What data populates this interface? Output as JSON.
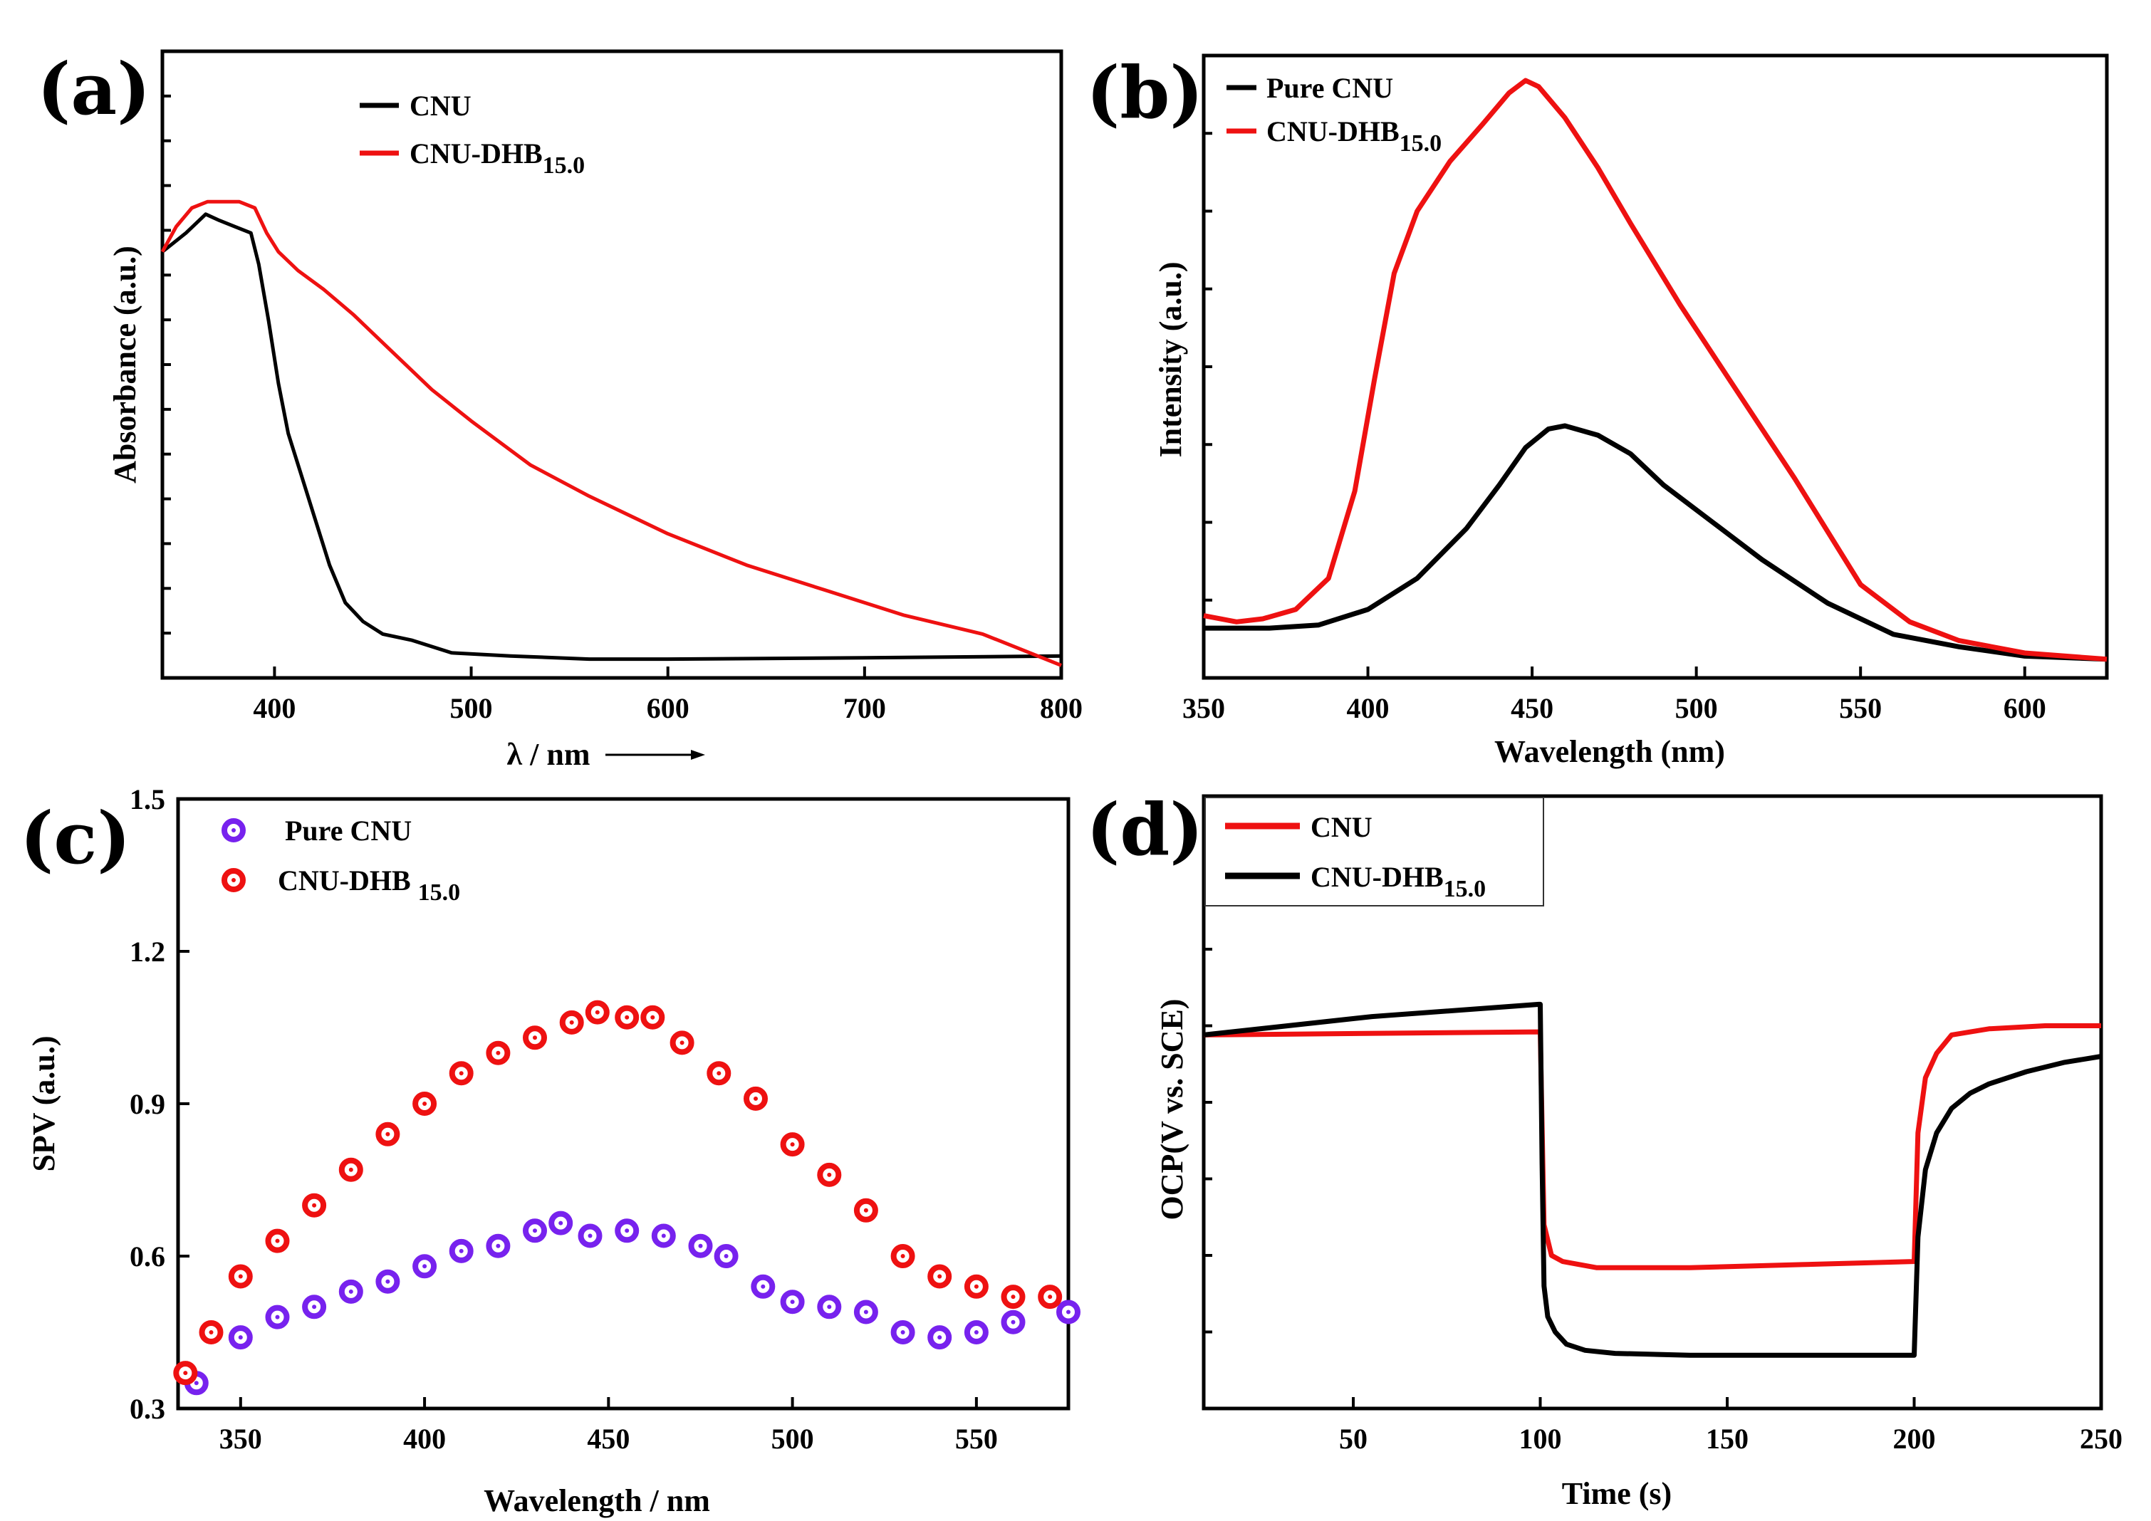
{
  "colors": {
    "black": "#000000",
    "red": "#ee1111",
    "purple": "#7722ee"
  },
  "chart_data": [
    {
      "id": "a",
      "panel_label": "(a)",
      "type": "line",
      "xlabel": "λ / nm",
      "ylabel": "Absorbance (a.u.)",
      "xlim": [
        343,
        800
      ],
      "ylim": [
        0,
        100
      ],
      "xticks": [
        "400",
        "500",
        "600",
        "700",
        "800"
      ],
      "legend": {
        "placement": "top-center",
        "entries": [
          {
            "name": "CNU",
            "sub": "",
            "color": "#000000"
          },
          {
            "name": "CNU-DHB",
            "sub": "15.0",
            "color": "#ee1111"
          }
        ]
      },
      "series": [
        {
          "name": "CNU",
          "color": "#000000",
          "x": [
            343,
            355,
            365,
            372,
            380,
            388,
            392,
            397,
            402,
            407,
            413,
            420,
            428,
            436,
            445,
            455,
            470,
            490,
            520,
            560,
            600,
            700,
            800
          ],
          "y": [
            68,
            71,
            74,
            73,
            72,
            71,
            66,
            57,
            47,
            39,
            33,
            26,
            18,
            12,
            9,
            7,
            6,
            4,
            3.5,
            3,
            3,
            3.2,
            3.5
          ]
        },
        {
          "name": "CNU-DHB15.0",
          "color": "#ee1111",
          "x": [
            343,
            350,
            358,
            366,
            374,
            382,
            390,
            396,
            402,
            412,
            425,
            440,
            460,
            480,
            500,
            530,
            560,
            600,
            640,
            680,
            720,
            760,
            800
          ],
          "y": [
            68,
            72,
            75,
            76,
            76,
            76,
            75,
            71,
            68,
            65,
            62,
            58,
            52,
            46,
            41,
            34,
            29,
            23,
            18,
            14,
            10,
            7,
            2
          ]
        }
      ]
    },
    {
      "id": "b",
      "panel_label": "(b)",
      "type": "line",
      "xlabel": "Wavelength (nm)",
      "ylabel": "Intensity (a.u.)",
      "xlim": [
        350,
        625
      ],
      "ylim": [
        0,
        100
      ],
      "xticks": [
        "350",
        "400",
        "450",
        "500",
        "550",
        "600"
      ],
      "legend": {
        "placement": "top-left",
        "entries": [
          {
            "name": "Pure CNU",
            "sub": "",
            "color": "#000000"
          },
          {
            "name": "CNU-DHB",
            "sub": "15.0",
            "color": "#ee1111"
          }
        ]
      },
      "series": [
        {
          "name": "Pure CNU",
          "color": "#000000",
          "x": [
            350,
            370,
            385,
            400,
            415,
            430,
            440,
            448,
            455,
            460,
            470,
            480,
            490,
            505,
            520,
            540,
            560,
            580,
            600,
            625
          ],
          "y": [
            8,
            8,
            8.5,
            11,
            16,
            24,
            31,
            37,
            40,
            40.5,
            39,
            36,
            31,
            25,
            19,
            12,
            7,
            5,
            3.5,
            3
          ]
        },
        {
          "name": "CNU-DHB15.0",
          "color": "#ee1111",
          "x": [
            350,
            360,
            368,
            378,
            388,
            396,
            402,
            408,
            415,
            425,
            435,
            443,
            448,
            452,
            460,
            470,
            480,
            495,
            510,
            530,
            550,
            565,
            580,
            600,
            625
          ],
          "y": [
            10,
            9,
            9.5,
            11,
            16,
            30,
            48,
            65,
            75,
            83,
            89,
            94,
            96,
            95,
            90,
            82,
            73,
            60,
            48,
            32,
            15,
            9,
            6,
            4,
            3
          ]
        }
      ]
    },
    {
      "id": "c",
      "panel_label": "(c)",
      "type": "scatter",
      "xlabel": "Wavelength / nm",
      "ylabel": "SPV (a.u.)",
      "xlim": [
        333,
        575
      ],
      "ylim": [
        0.3,
        1.5
      ],
      "yticks": [
        "0.3",
        "0.6",
        "0.9",
        "1.2",
        "1.5"
      ],
      "xticks": [
        "350",
        "400",
        "450",
        "500",
        "550"
      ],
      "legend": {
        "placement": "top-left",
        "entries": [
          {
            "name": "Pure CNU",
            "sub": "",
            "color": "#7722ee"
          },
          {
            "name": "CNU-DHB ",
            "sub": "15.0",
            "color": "#ee1111"
          }
        ]
      },
      "series": [
        {
          "name": "Pure CNU",
          "color": "#7722ee",
          "x": [
            338,
            350,
            360,
            370,
            380,
            390,
            400,
            410,
            420,
            430,
            437,
            445,
            455,
            465,
            475,
            482,
            492,
            500,
            510,
            520,
            530,
            540,
            550,
            560,
            575
          ],
          "y": [
            0.35,
            0.44,
            0.48,
            0.5,
            0.53,
            0.55,
            0.58,
            0.61,
            0.62,
            0.65,
            0.665,
            0.64,
            0.65,
            0.64,
            0.62,
            0.6,
            0.54,
            0.51,
            0.5,
            0.49,
            0.45,
            0.44,
            0.45,
            0.47,
            0.49
          ]
        },
        {
          "name": "CNU-DHB 15.0",
          "color": "#ee1111",
          "x": [
            335,
            342,
            350,
            360,
            370,
            380,
            390,
            400,
            410,
            420,
            430,
            440,
            447,
            455,
            462,
            470,
            480,
            490,
            500,
            510,
            520,
            530,
            540,
            550,
            560,
            570
          ],
          "y": [
            0.37,
            0.45,
            0.56,
            0.63,
            0.7,
            0.77,
            0.84,
            0.9,
            0.96,
            1.0,
            1.03,
            1.06,
            1.08,
            1.07,
            1.07,
            1.02,
            0.96,
            0.91,
            0.82,
            0.76,
            0.69,
            0.6,
            0.56,
            0.54,
            0.52,
            0.52
          ]
        }
      ]
    },
    {
      "id": "d",
      "panel_label": "(d)",
      "type": "line",
      "xlabel": "Time (s)",
      "ylabel": "OCP(V vs. SCE)",
      "xlim": [
        10,
        250
      ],
      "ylim": [
        0,
        100
      ],
      "xticks": [
        "50",
        "100",
        "150",
        "200",
        "250"
      ],
      "legend": {
        "placement": "top-left",
        "entries": [
          {
            "name": "CNU",
            "sub": "",
            "color": "#ee1111"
          },
          {
            "name": "CNU-DHB",
            "sub": "15.0",
            "color": "#000000"
          }
        ]
      },
      "series": [
        {
          "name": "CNU",
          "color": "#ee1111",
          "x": [
            10,
            99.6,
            100,
            101,
            103,
            106,
            115,
            140,
            170,
            199.5,
            200,
            201,
            203,
            206,
            210,
            220,
            235,
            250
          ],
          "y": [
            61,
            61.5,
            61.5,
            30,
            25,
            24,
            23,
            23,
            23.5,
            24,
            24,
            45,
            54,
            58,
            61,
            62,
            62.5,
            62.5
          ]
        },
        {
          "name": "CNU-DHB15.0",
          "color": "#000000",
          "x": [
            10,
            55,
            99.6,
            100,
            100.5,
            101,
            102,
            104,
            107,
            112,
            120,
            140,
            170,
            199.5,
            200,
            201,
            203,
            206,
            210,
            215,
            220,
            230,
            240,
            250
          ],
          "y": [
            61,
            64,
            66,
            66,
            40,
            20,
            15,
            12.5,
            10.5,
            9.5,
            9,
            8.7,
            8.7,
            8.7,
            8.7,
            28,
            39,
            45,
            49,
            51.5,
            53,
            55,
            56.5,
            57.5
          ]
        }
      ]
    }
  ]
}
